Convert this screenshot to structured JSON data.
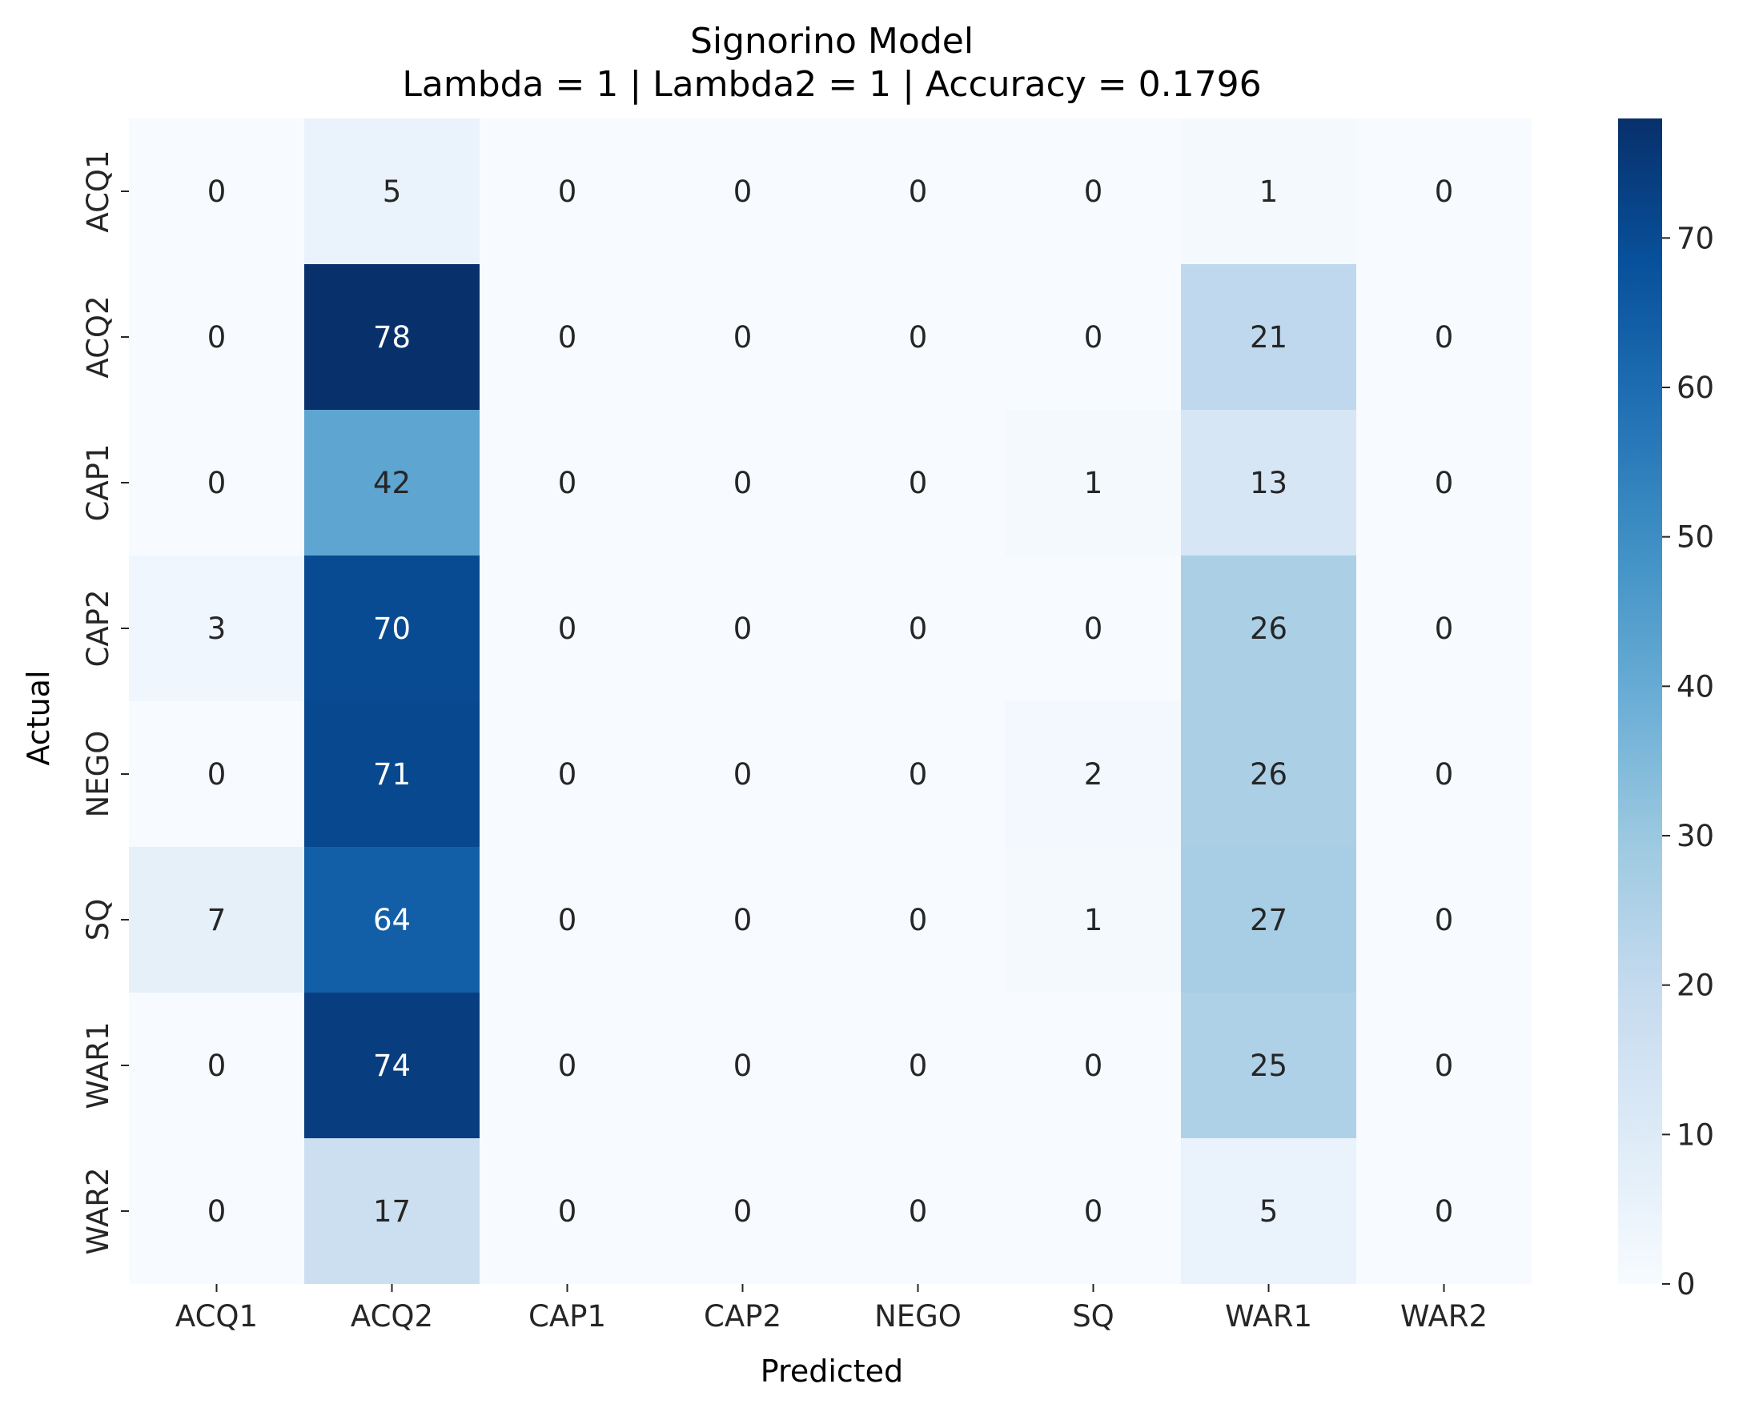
{
  "chart_data": {
    "type": "heatmap",
    "title": "Signorino Model",
    "subtitle": "Lambda = 1 | Lambda2 = 1 | Accuracy = 0.1796",
    "xlabel": "Predicted",
    "ylabel": "Actual",
    "x_categories": [
      "ACQ1",
      "ACQ2",
      "CAP1",
      "CAP2",
      "NEGO",
      "SQ",
      "WAR1",
      "WAR2"
    ],
    "y_categories": [
      "ACQ1",
      "ACQ2",
      "CAP1",
      "CAP2",
      "NEGO",
      "SQ",
      "WAR1",
      "WAR2"
    ],
    "values": [
      [
        0,
        5,
        0,
        0,
        0,
        0,
        1,
        0
      ],
      [
        0,
        78,
        0,
        0,
        0,
        0,
        21,
        0
      ],
      [
        0,
        42,
        0,
        0,
        0,
        1,
        13,
        0
      ],
      [
        3,
        70,
        0,
        0,
        0,
        0,
        26,
        0
      ],
      [
        0,
        71,
        0,
        0,
        0,
        2,
        26,
        0
      ],
      [
        7,
        64,
        0,
        0,
        0,
        1,
        27,
        0
      ],
      [
        0,
        74,
        0,
        0,
        0,
        0,
        25,
        0
      ],
      [
        0,
        17,
        0,
        0,
        0,
        0,
        5,
        0
      ]
    ],
    "colormap": "Blues",
    "colormap_stops": [
      "#f7fbff",
      "#deebf7",
      "#c6dbef",
      "#9ecae1",
      "#6baed6",
      "#4292c6",
      "#2171b5",
      "#08519c",
      "#08306b"
    ],
    "vmin": 0,
    "vmax": 78,
    "colorbar_ticks": [
      0,
      10,
      20,
      30,
      40,
      50,
      60,
      70
    ],
    "annotations": true,
    "grid": false
  }
}
